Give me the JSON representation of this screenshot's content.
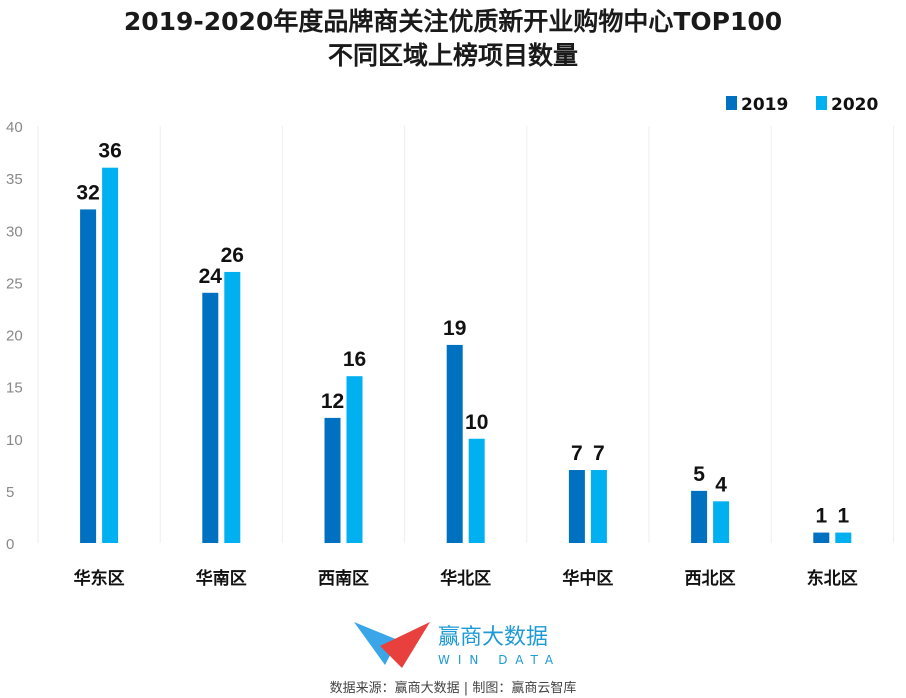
{
  "chart_data": {
    "type": "bar",
    "title": "2019-2020年度品牌商关注优质新开业购物中心TOP100",
    "subtitle": "不同区域上榜项目数量",
    "categories": [
      "华东区",
      "华南区",
      "西南区",
      "华北区",
      "华中区",
      "西北区",
      "东北区"
    ],
    "series": [
      {
        "name": "2019",
        "values": [
          32,
          24,
          12,
          19,
          7,
          5,
          1
        ],
        "color": "#0070c0"
      },
      {
        "name": "2020",
        "values": [
          36,
          26,
          16,
          10,
          7,
          4,
          1
        ],
        "color": "#00b0f0"
      }
    ],
    "ylim": [
      0,
      40
    ],
    "yticks": [
      0,
      5,
      10,
      15,
      20,
      25,
      30,
      35,
      40
    ],
    "grid": "vertical separators",
    "legend": "top-right"
  },
  "footer": {
    "brand_cn": "赢商大数据",
    "brand_en": "WIN DATA",
    "source": "数据来源：赢商大数据 | 制图：赢商云智库"
  }
}
